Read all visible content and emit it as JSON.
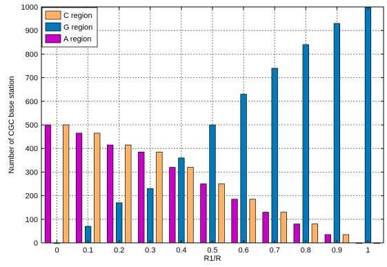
{
  "chart_data": {
    "type": "bar",
    "xlabel": "R1/R",
    "ylabel": "Number of CGC base station",
    "categories": [
      "0",
      "0.1",
      "0.2",
      "0.3",
      "0.4",
      "0.5",
      "0.6",
      "0.7",
      "0.8",
      "0.9",
      "1"
    ],
    "ylim": [
      0,
      1000
    ],
    "yticks": [
      "0",
      "100",
      "200",
      "300",
      "400",
      "500",
      "600",
      "700",
      "800",
      "900",
      "1000"
    ],
    "grid": true,
    "legend_position": "top-left",
    "legend": [
      {
        "name": "C region",
        "color": "#ffb266"
      },
      {
        "name": "G region",
        "color": "#007aba"
      },
      {
        "name": "A region",
        "color": "#c800c8"
      }
    ],
    "series": [
      {
        "name": "A region",
        "color": "#c800c8",
        "values": [
          500,
          465,
          415,
          385,
          320,
          250,
          185,
          130,
          80,
          35,
          0
        ]
      },
      {
        "name": "G region",
        "color": "#007aba",
        "values": [
          0,
          70,
          170,
          230,
          360,
          500,
          630,
          740,
          840,
          930,
          1000
        ]
      },
      {
        "name": "C region",
        "color": "#ffb266",
        "values": [
          500,
          465,
          415,
          385,
          320,
          250,
          185,
          130,
          80,
          35,
          0
        ]
      }
    ]
  }
}
